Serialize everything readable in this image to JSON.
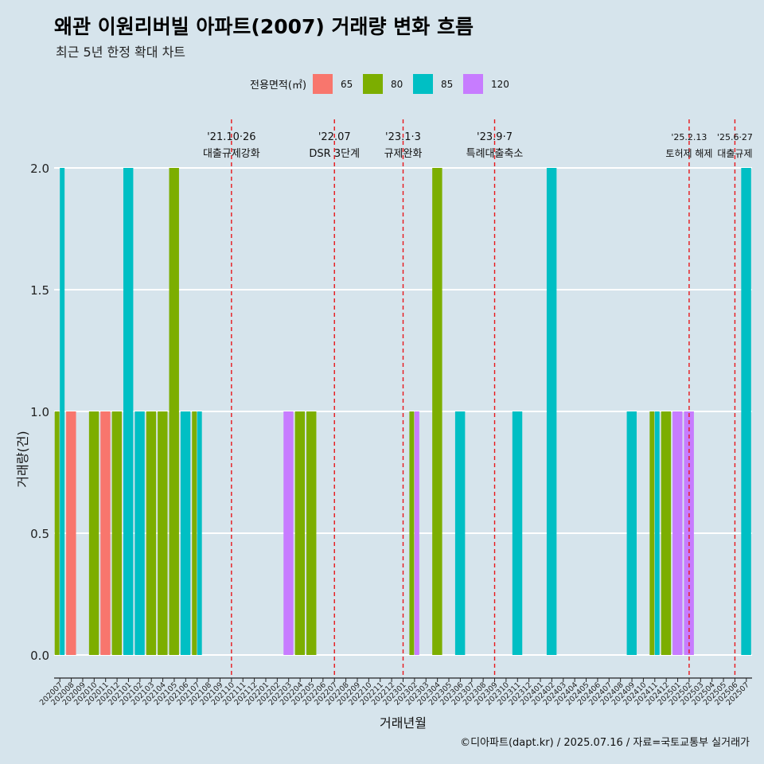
{
  "title": "왜관 이원리버빌 아파트(2007) 거래량 변화 흐름",
  "subtitle": "최근 5년 한정 확대 차트",
  "caption": "©디아파트(dapt.kr) / 2025.07.16 / 자료=국토교통부 실거래가",
  "legend": {
    "title": "전용면적(㎡)",
    "items": [
      {
        "label": "65",
        "color": "#F8766D"
      },
      {
        "label": "80",
        "color": "#7CAE00"
      },
      {
        "label": "85",
        "color": "#00BFC4"
      },
      {
        "label": "120",
        "color": "#C77CFF"
      }
    ]
  },
  "chart_data": {
    "type": "bar",
    "position": "dodge",
    "xlabel": "거래년월",
    "ylabel": "거래량(건)",
    "ylim": [
      0,
      2
    ],
    "yticks": [
      "0.0",
      "0.5",
      "1.0",
      "1.5",
      "2.0"
    ],
    "categories": [
      "202007",
      "202008",
      "202009",
      "202010",
      "202011",
      "202012",
      "202101",
      "202102",
      "202103",
      "202104",
      "202105",
      "202106",
      "202107",
      "202108",
      "202109",
      "202110",
      "202111",
      "202112",
      "202201",
      "202202",
      "202203",
      "202204",
      "202205",
      "202206",
      "202207",
      "202208",
      "202209",
      "202210",
      "202211",
      "202212",
      "202301",
      "202302",
      "202303",
      "202304",
      "202305",
      "202306",
      "202307",
      "202308",
      "202309",
      "202310",
      "202311",
      "202312",
      "202401",
      "202402",
      "202403",
      "202404",
      "202405",
      "202406",
      "202407",
      "202408",
      "202409",
      "202410",
      "202411",
      "202412",
      "202501",
      "202502",
      "202503",
      "202504",
      "202505",
      "202506",
      "202507"
    ],
    "series": [
      {
        "name": "65",
        "color": "#F8766D",
        "points": [
          {
            "month": "202008",
            "value": 1
          },
          {
            "month": "202011",
            "value": 1
          }
        ]
      },
      {
        "name": "80",
        "color": "#7CAE00",
        "points": [
          {
            "month": "202007",
            "value": 1
          },
          {
            "month": "202010",
            "value": 1
          },
          {
            "month": "202012",
            "value": 1
          },
          {
            "month": "202103",
            "value": 1
          },
          {
            "month": "202104",
            "value": 1
          },
          {
            "month": "202105",
            "value": 2
          },
          {
            "month": "202107",
            "value": 1
          },
          {
            "month": "202204",
            "value": 1
          },
          {
            "month": "202205",
            "value": 1
          },
          {
            "month": "202302",
            "value": 1
          },
          {
            "month": "202304",
            "value": 2
          },
          {
            "month": "202411",
            "value": 1
          },
          {
            "month": "202412",
            "value": 1
          }
        ]
      },
      {
        "name": "85",
        "color": "#00BFC4",
        "points": [
          {
            "month": "202007",
            "value": 2
          },
          {
            "month": "202101",
            "value": 2
          },
          {
            "month": "202102",
            "value": 1
          },
          {
            "month": "202106",
            "value": 1
          },
          {
            "month": "202107",
            "value": 1
          },
          {
            "month": "202306",
            "value": 1
          },
          {
            "month": "202311",
            "value": 1
          },
          {
            "month": "202402",
            "value": 2
          },
          {
            "month": "202409",
            "value": 1
          },
          {
            "month": "202411",
            "value": 1
          },
          {
            "month": "202507",
            "value": 2
          }
        ]
      },
      {
        "name": "120",
        "color": "#C77CFF",
        "points": [
          {
            "month": "202203",
            "value": 1
          },
          {
            "month": "202302",
            "value": 1
          },
          {
            "month": "202501",
            "value": 1
          },
          {
            "month": "202502",
            "value": 1
          }
        ]
      }
    ],
    "events": [
      {
        "date": "'21.10·26",
        "label": "대출규제강화",
        "month": "202110"
      },
      {
        "date": "'22.07",
        "label": "DSR 3단계",
        "month": "202207"
      },
      {
        "date": "'23.1·3",
        "label": "규제완화",
        "month": "202301"
      },
      {
        "date": "'23.9·7",
        "label": "특례대출축소",
        "month": "202309"
      },
      {
        "date": "'25.2.13",
        "label": "토허제 해제",
        "month": "202502"
      },
      {
        "date": "'25.6·27",
        "label": "대출규제",
        "month": "202506"
      }
    ]
  }
}
